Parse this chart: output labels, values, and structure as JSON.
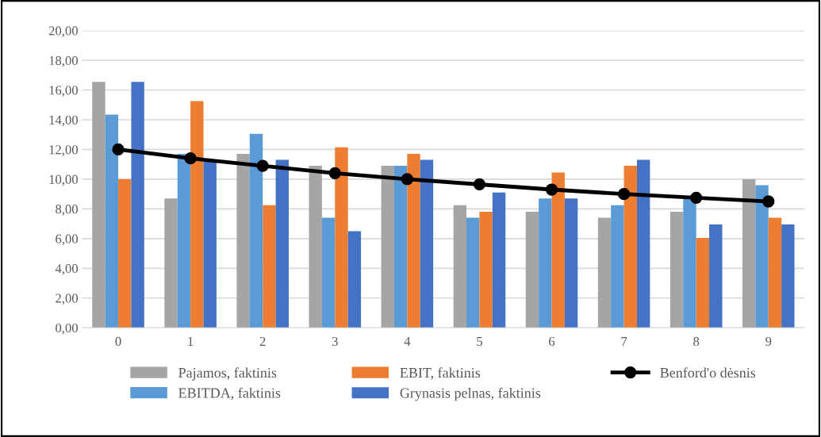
{
  "chart_data": {
    "type": "bar",
    "categories": [
      "0",
      "1",
      "2",
      "3",
      "4",
      "5",
      "6",
      "7",
      "8",
      "9"
    ],
    "series": [
      {
        "name": "Pajamos, faktinis",
        "color": "#a5a5a5",
        "values": [
          16.55,
          8.7,
          11.7,
          10.9,
          10.9,
          8.25,
          7.8,
          7.4,
          7.8,
          10.0
        ]
      },
      {
        "name": "EBITDA, faktinis",
        "color": "#5b9bd5",
        "values": [
          14.35,
          11.7,
          13.05,
          7.4,
          10.9,
          7.4,
          8.7,
          8.25,
          8.7,
          9.6
        ]
      },
      {
        "name": "EBIT, faktinis",
        "color": "#ed7d31",
        "values": [
          10.0,
          15.25,
          8.25,
          12.15,
          11.7,
          7.8,
          10.45,
          10.9,
          6.05,
          7.4
        ]
      },
      {
        "name": "Grynasis pelnas, faktinis",
        "color": "#4472c4",
        "values": [
          16.55,
          11.3,
          11.3,
          6.5,
          11.3,
          9.1,
          8.7,
          11.3,
          6.95,
          6.95
        ]
      },
      {
        "name": "Benford'o dėsnis",
        "color": "#000000",
        "type": "line",
        "marker": "circle",
        "values": [
          12.0,
          11.4,
          10.9,
          10.4,
          10.0,
          9.65,
          9.3,
          9.0,
          8.75,
          8.5
        ]
      }
    ],
    "ylim": [
      0,
      20
    ],
    "yticks": [
      {
        "value": 0,
        "label": "0,00"
      },
      {
        "value": 2,
        "label": "2,00"
      },
      {
        "value": 4,
        "label": "4,00"
      },
      {
        "value": 6,
        "label": "6,00"
      },
      {
        "value": 8,
        "label": "8,00"
      },
      {
        "value": 10,
        "label": "10,00"
      },
      {
        "value": 12,
        "label": "12,00"
      },
      {
        "value": 14,
        "label": "14,00"
      },
      {
        "value": 16,
        "label": "16,00"
      },
      {
        "value": 18,
        "label": "18,00"
      },
      {
        "value": 20,
        "label": "20,00"
      }
    ],
    "grid": "y",
    "legend": "bottom"
  }
}
